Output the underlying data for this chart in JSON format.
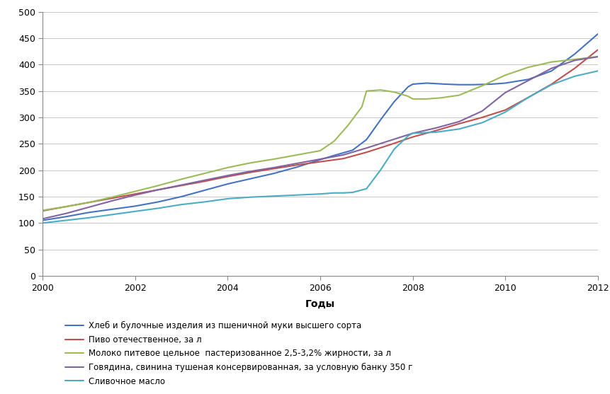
{
  "title": "",
  "xlabel": "Годы",
  "ylabel": "",
  "xlim": [
    2000,
    2012
  ],
  "ylim": [
    0,
    500
  ],
  "yticks": [
    0,
    50,
    100,
    150,
    200,
    250,
    300,
    350,
    400,
    450,
    500
  ],
  "xticks": [
    2000,
    2002,
    2004,
    2006,
    2008,
    2010,
    2012
  ],
  "series": [
    {
      "label": "Хлеб и булочные изделия из пшеничной муки высшего сорта",
      "color": "#4472C4",
      "x": [
        2000,
        2000.5,
        2001,
        2001.5,
        2002,
        2002.5,
        2003,
        2003.5,
        2004,
        2004.5,
        2005,
        2005.5,
        2006,
        2006.3,
        2006.7,
        2007,
        2007.3,
        2007.6,
        2007.9,
        2008,
        2008.3,
        2008.7,
        2009,
        2009.3,
        2009.7,
        2010,
        2010.5,
        2011,
        2011.5,
        2012
      ],
      "y": [
        105,
        112,
        120,
        126,
        132,
        140,
        150,
        162,
        174,
        184,
        194,
        206,
        220,
        228,
        238,
        258,
        295,
        330,
        358,
        363,
        365,
        363,
        362,
        362,
        363,
        365,
        372,
        388,
        420,
        458
      ]
    },
    {
      "label": "Пиво отечественное, за л",
      "color": "#C0504D",
      "x": [
        2000,
        2000.5,
        2001,
        2001.5,
        2002,
        2002.5,
        2003,
        2003.5,
        2004,
        2004.5,
        2005,
        2005.5,
        2006,
        2006.5,
        2007,
        2007.5,
        2008,
        2008.5,
        2009,
        2009.5,
        2010,
        2010.5,
        2011,
        2011.5,
        2012
      ],
      "y": [
        123,
        131,
        139,
        147,
        155,
        163,
        171,
        179,
        188,
        196,
        203,
        210,
        216,
        222,
        234,
        248,
        263,
        275,
        288,
        300,
        314,
        338,
        363,
        393,
        428
      ]
    },
    {
      "label": "Молоко питевое цельное  пастеризованное 2,5-3,2% жирности, за л",
      "color": "#9BBB59",
      "x": [
        2000,
        2000.5,
        2001,
        2001.5,
        2002,
        2002.5,
        2003,
        2003.5,
        2004,
        2004.5,
        2005,
        2005.5,
        2006,
        2006.3,
        2006.6,
        2006.9,
        2007,
        2007.3,
        2007.6,
        2007.9,
        2008,
        2008.3,
        2008.6,
        2009,
        2009.5,
        2010,
        2010.5,
        2011,
        2011.5,
        2012
      ],
      "y": [
        124,
        131,
        139,
        149,
        160,
        171,
        183,
        194,
        205,
        214,
        221,
        229,
        237,
        255,
        285,
        320,
        350,
        352,
        348,
        340,
        335,
        335,
        337,
        342,
        360,
        380,
        395,
        405,
        410,
        415
      ]
    },
    {
      "label": "Говядина, свинина тушеная консервированная, за условную банку 350 г",
      "color": "#8064A2",
      "x": [
        2000,
        2000.5,
        2001,
        2001.5,
        2002,
        2002.5,
        2003,
        2003.5,
        2004,
        2004.5,
        2005,
        2005.5,
        2006,
        2006.5,
        2007,
        2007.5,
        2008,
        2008.5,
        2009,
        2009.5,
        2010,
        2010.5,
        2011,
        2011.5,
        2012
      ],
      "y": [
        108,
        118,
        130,
        142,
        153,
        163,
        172,
        181,
        190,
        198,
        205,
        213,
        221,
        229,
        242,
        256,
        270,
        280,
        292,
        312,
        347,
        370,
        393,
        408,
        415
      ]
    },
    {
      "label": "Сливочное масло",
      "color": "#4BACC6",
      "x": [
        2000,
        2000.5,
        2001,
        2001.5,
        2002,
        2002.5,
        2003,
        2003.5,
        2004,
        2004.5,
        2005,
        2005.5,
        2006,
        2006.3,
        2006.5,
        2006.7,
        2007,
        2007.3,
        2007.6,
        2007.9,
        2008,
        2008.5,
        2009,
        2009.5,
        2010,
        2010.5,
        2011,
        2011.5,
        2012
      ],
      "y": [
        100,
        105,
        110,
        116,
        122,
        128,
        135,
        140,
        146,
        149,
        151,
        153,
        155,
        157,
        157,
        158,
        165,
        200,
        240,
        265,
        270,
        272,
        278,
        290,
        310,
        338,
        362,
        378,
        388
      ]
    }
  ],
  "legend_fontsize": 8.5,
  "axis_fontsize": 10,
  "tick_fontsize": 9,
  "background_color": "#ffffff",
  "grid_color": "#bbbbbb",
  "linewidth": 1.5
}
